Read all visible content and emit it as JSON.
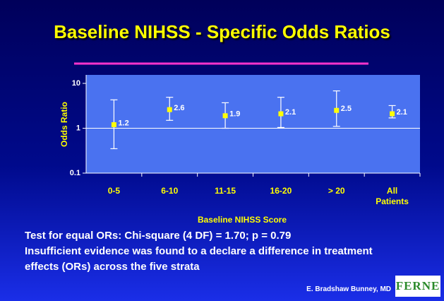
{
  "chart_data": {
    "type": "errorbar",
    "title": "Baseline NIHSS - Specific Odds Ratios",
    "xlabel": "Baseline NIHSS Score",
    "ylabel": "Odds Ratio",
    "categories": [
      "0-5",
      "6-10",
      "11-15",
      "16-20",
      "> 20",
      "All Patients"
    ],
    "values": [
      1.2,
      2.6,
      1.9,
      2.1,
      2.5,
      2.1
    ],
    "lower": [
      0.35,
      1.5,
      1.0,
      1.04,
      1.1,
      1.7
    ],
    "upper": [
      4.3,
      4.9,
      3.7,
      4.9,
      6.8,
      3.2
    ],
    "ylim": [
      0.1,
      10
    ],
    "yticks": [
      0.1,
      1,
      10
    ],
    "log_y": true,
    "grid": true,
    "color": "#ffff00",
    "plot_color": "#4a72f0"
  },
  "notes": [
    "Test for equal ORs: Chi-square (4 DF) = 1.70; p = 0.79",
    "Insufficient evidence was found to a declare a difference in treatment effects (ORs) across the five strata"
  ],
  "credit": "E. Bradshaw Bunney, MD",
  "logo": "FERNE"
}
